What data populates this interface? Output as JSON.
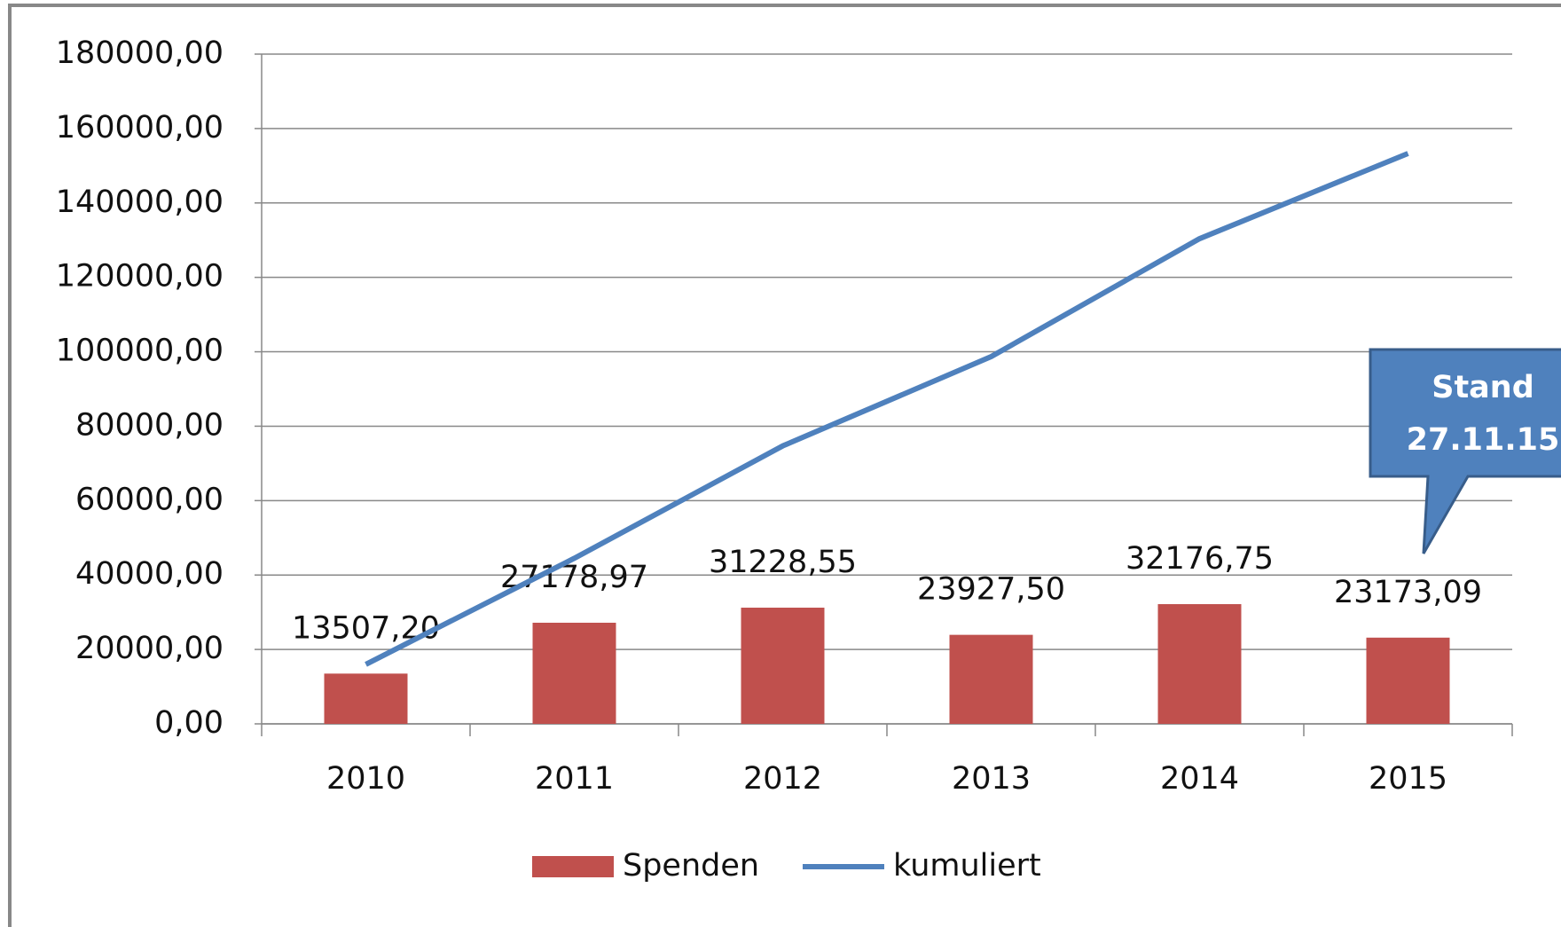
{
  "chart_data": {
    "type": "bar",
    "categories": [
      "2010",
      "2011",
      "2012",
      "2013",
      "2014",
      "2015"
    ],
    "series": [
      {
        "name": "Spenden",
        "type": "bar",
        "color": "#c0504d",
        "values": [
          13507.2,
          27178.97,
          31228.55,
          23927.5,
          32176.75,
          23173.09
        ],
        "value_labels": [
          "13507,20",
          "27178,97",
          "31228,55",
          "23927,50",
          "32176,75",
          "23173,09"
        ]
      },
      {
        "name": "kumuliert",
        "type": "line",
        "color": "#4f81bd",
        "values": [
          16000,
          44500,
          74700,
          98700,
          130400,
          153300
        ]
      }
    ],
    "ylim": [
      0,
      180000
    ],
    "yticks": [
      {
        "value": 0,
        "label": "0,00"
      },
      {
        "value": 20000,
        "label": "20000,00"
      },
      {
        "value": 40000,
        "label": "40000,00"
      },
      {
        "value": 60000,
        "label": "60000,00"
      },
      {
        "value": 80000,
        "label": "80000,00"
      },
      {
        "value": 100000,
        "label": "100000,00"
      },
      {
        "value": 120000,
        "label": "120000,00"
      },
      {
        "value": 140000,
        "label": "140000,00"
      },
      {
        "value": 160000,
        "label": "160000,00"
      },
      {
        "value": 180000,
        "label": "180000,00"
      }
    ],
    "grid": true,
    "legend": "bottom",
    "annotation": [
      "Stand",
      "27.11.15"
    ]
  }
}
